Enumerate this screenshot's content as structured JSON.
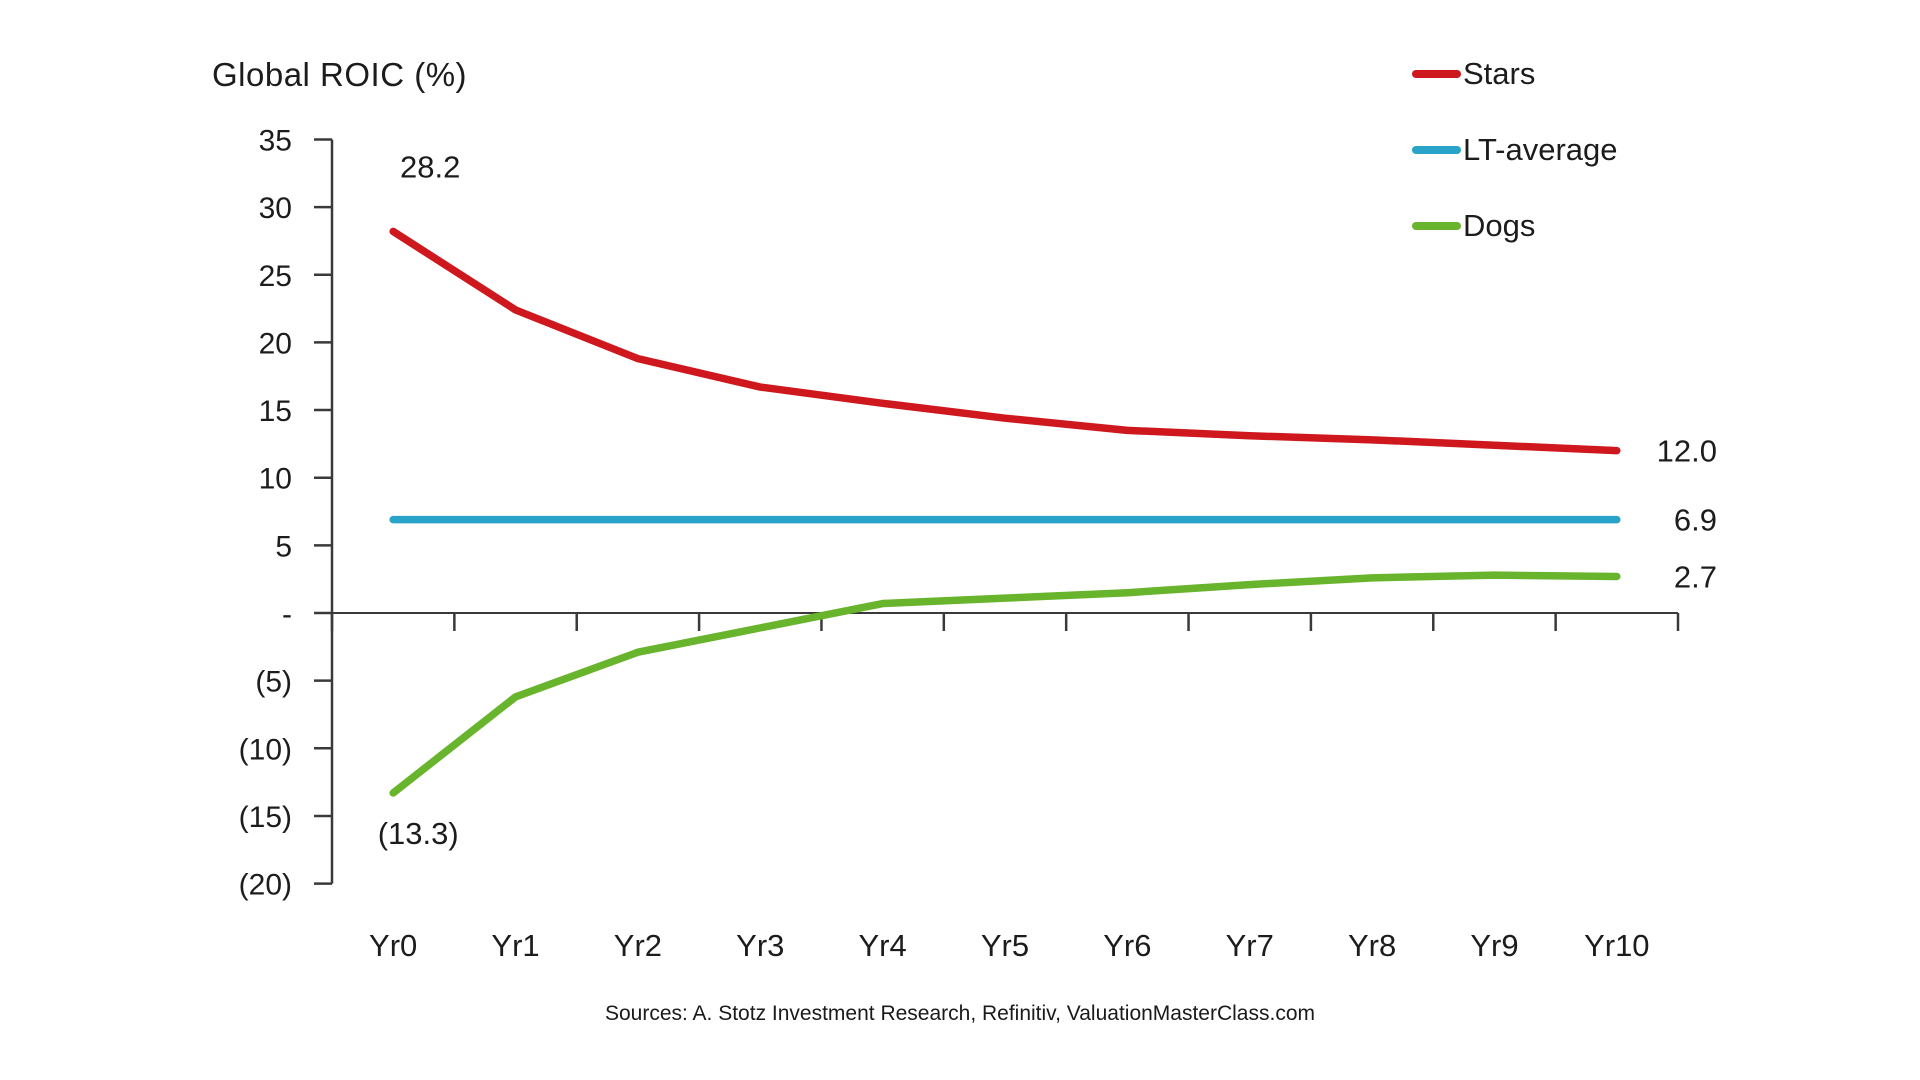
{
  "title": "Global ROIC (%)",
  "source_caption": "Sources: A. Stotz Investment Research, Refinitiv, ValuationMasterClass.com",
  "chart_data": {
    "type": "line",
    "title": "Global ROIC (%)",
    "categories": [
      "Yr0",
      "Yr1",
      "Yr2",
      "Yr3",
      "Yr4",
      "Yr5",
      "Yr6",
      "Yr7",
      "Yr8",
      "Yr9",
      "Yr10"
    ],
    "y_axis": {
      "ylim": [
        -20,
        35
      ],
      "tick_interval": 5,
      "tick_values": [
        35,
        30,
        25,
        20,
        15,
        10,
        5,
        0,
        -5,
        -10,
        -15,
        -20
      ],
      "tick_labels": [
        "35",
        "30",
        "25",
        "20",
        "15",
        "10",
        "5",
        "-",
        "(5)",
        "(10)",
        "(15)",
        "(20)"
      ]
    },
    "grid": false,
    "legend_position": "top-right",
    "axis_color": "#3a3a3a",
    "series": [
      {
        "name": "Stars",
        "color": "#ce181e",
        "values": [
          28.2,
          22.4,
          18.8,
          16.7,
          15.5,
          14.4,
          13.5,
          13.1,
          12.8,
          12.4,
          12.0
        ],
        "first_point_label": "28.2",
        "last_point_label": "12.0"
      },
      {
        "name": "LT-average",
        "color": "#2aa3c8",
        "values": [
          6.9,
          6.9,
          6.9,
          6.9,
          6.9,
          6.9,
          6.9,
          6.9,
          6.9,
          6.9,
          6.9
        ],
        "last_point_label": "6.9"
      },
      {
        "name": "Dogs",
        "color": "#68b42d",
        "values": [
          -13.3,
          -6.2,
          -2.9,
          -1.1,
          0.7,
          1.1,
          1.5,
          2.1,
          2.6,
          2.8,
          2.7
        ],
        "first_point_label": "(13.3)",
        "last_point_label": "2.7"
      }
    ]
  }
}
